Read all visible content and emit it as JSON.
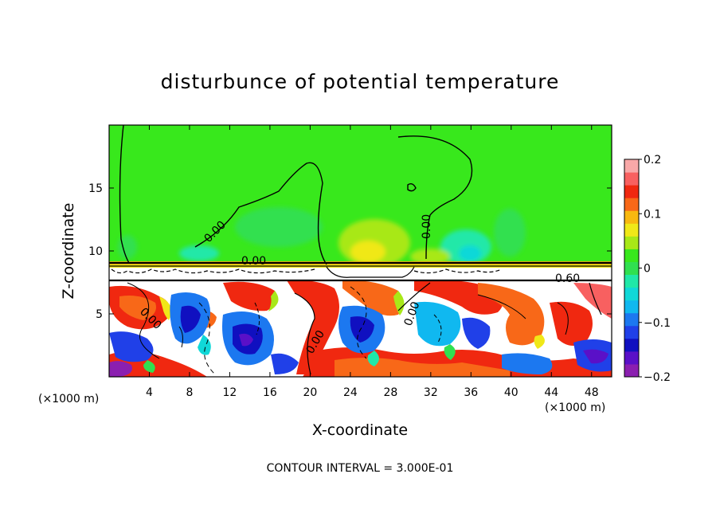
{
  "chart_data": {
    "type": "heatmap",
    "title": "disturbunce of potential temperature",
    "xlabel": "X-coordinate",
    "ylabel": "Z-coordinate",
    "x_unit": "(×1000 m)",
    "x_range": [
      0,
      50
    ],
    "y_range": [
      0,
      20
    ],
    "x_ticks": [
      4,
      8,
      12,
      16,
      20,
      24,
      28,
      32,
      36,
      40,
      44,
      48
    ],
    "y_ticks": [
      5,
      10,
      15
    ],
    "colorbar": {
      "range": [
        -0.2,
        0.2
      ],
      "tick_values": [
        0.2,
        0.1,
        0,
        -0.1,
        -0.2
      ],
      "tick_labels": [
        "0.2",
        "0.1",
        "0",
        "−0.1",
        "−0.2"
      ],
      "colors": [
        "#8b1fb0",
        "#5a10c8",
        "#1010c0",
        "#2040e8",
        "#1c78f0",
        "#10b8f0",
        "#10d8d8",
        "#20e8a8",
        "#30e050",
        "#38e81c",
        "#a8e818",
        "#f0e818",
        "#f8b810",
        "#f86818",
        "#f02810",
        "#f86060",
        "#f8a8a8"
      ]
    },
    "contour_labels": [
      "0.00",
      "0.00",
      "0.00",
      "0.00",
      "0.00",
      "0.00",
      "0.60"
    ],
    "footnote": "CONTOUR INTERVAL = 3.000E-01",
    "grid": false
  }
}
